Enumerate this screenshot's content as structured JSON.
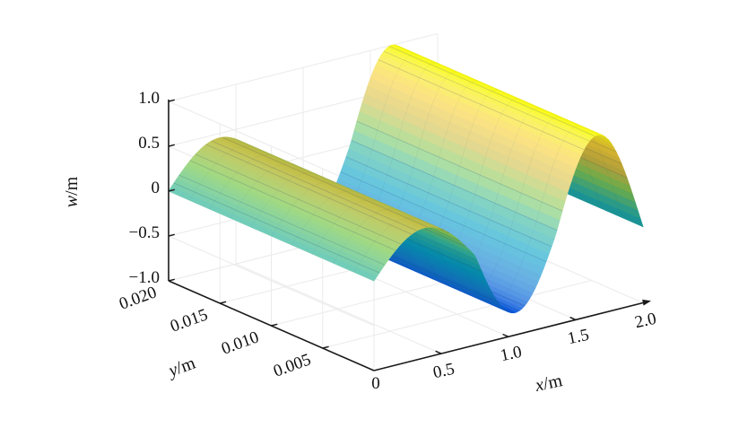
{
  "figure": {
    "background": "#ffffff",
    "description": "3D surface plot of transverse deflection w over a plate strip (x 0-2 m, y 0-0.02 m)"
  },
  "axes": {
    "x": {
      "letter": "x",
      "unit": "/m",
      "ticks": [
        "0.5",
        "1.0",
        "1.5",
        "2.0"
      ],
      "range": [
        0,
        2
      ]
    },
    "y": {
      "letter": "y",
      "unit": "/m",
      "ticks": [
        "0.005",
        "0.010",
        "0.015",
        "0.020"
      ],
      "range": [
        0,
        0.02
      ]
    },
    "z": {
      "letter": "w",
      "unit": "/m",
      "ticks": [
        "1.0",
        "0.5",
        "0",
        "−0.5",
        "−1.0"
      ],
      "range": [
        -1,
        1
      ]
    },
    "origin_label": "0"
  },
  "chart_data": {
    "type": "surface",
    "title": "",
    "xlabel": "x/m",
    "ylabel": "y/m",
    "zlabel": "w/m",
    "x_range": [
      0,
      2
    ],
    "y_range": [
      0,
      0.02
    ],
    "z_range": [
      -1,
      1
    ],
    "grid": true,
    "legend": false,
    "colormap": "parula",
    "colormap_anchors": [
      "#352a87",
      "#0f5cdd",
      "#1483d4",
      "#06a3ca",
      "#33b8a1",
      "#81cc59",
      "#d4bd44",
      "#fad237",
      "#f9fb15"
    ],
    "surface_model": {
      "description": "w(x,y) = w(x), independent of y (cylindrical surface); piecewise half-sine wave segments",
      "segments": [
        {
          "x_start": 0.0,
          "x_end": 0.75,
          "amplitude": 0.45,
          "half_period": 0.75
        },
        {
          "x_start": 0.75,
          "x_end": 1.35,
          "amplitude": -0.75,
          "half_period": 0.6
        },
        {
          "x_start": 1.35,
          "x_end": 2.0,
          "amplitude": 1.0,
          "half_period": 0.62
        }
      ]
    },
    "profile_samples": {
      "x": [
        0,
        0.1,
        0.2,
        0.3,
        0.375,
        0.5,
        0.6,
        0.7,
        0.75,
        0.8,
        0.9,
        1.0,
        1.05,
        1.1,
        1.2,
        1.3,
        1.35,
        1.4,
        1.5,
        1.6,
        1.66,
        1.7,
        1.8,
        1.9,
        2.0
      ],
      "w": [
        0,
        0.18,
        0.33,
        0.43,
        0.45,
        0.39,
        0.26,
        0.09,
        0,
        -0.19,
        -0.53,
        -0.72,
        -0.75,
        -0.72,
        -0.53,
        -0.19,
        0,
        0.25,
        0.69,
        0.95,
        1.0,
        0.98,
        0.76,
        0.35,
        -0.15
      ]
    },
    "mesh": {
      "x_lines_spacing": 0.04,
      "y_divisions": 10
    }
  }
}
